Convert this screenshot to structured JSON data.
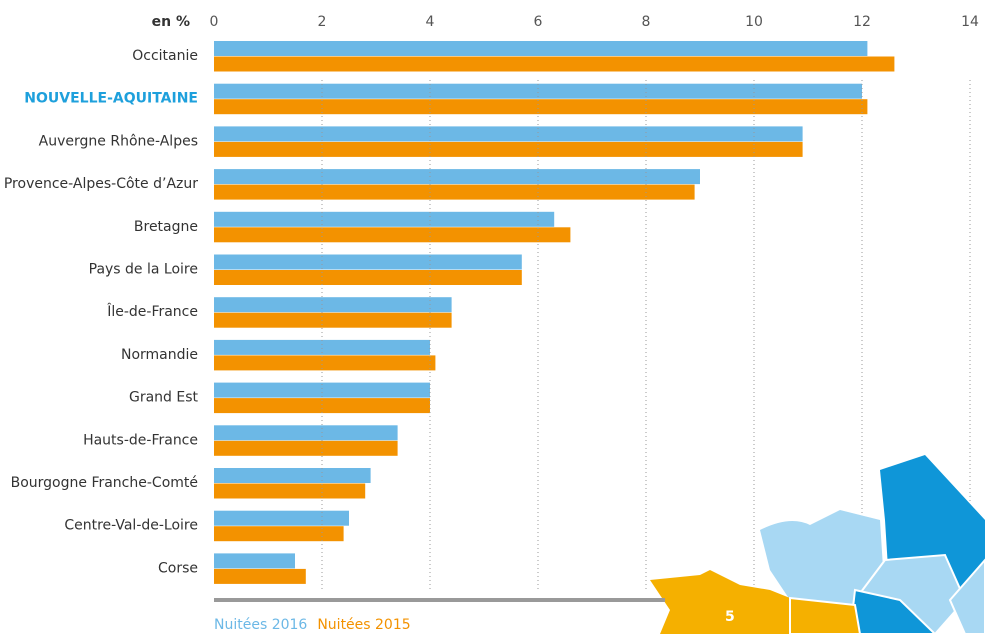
{
  "chart_data": {
    "type": "bar",
    "orientation": "horizontal",
    "axis_label": "en %",
    "categories": [
      "Occitanie",
      "NOUVELLE-AQUITAINE",
      "Auvergne Rhône-Alpes",
      "Provence-Alpes-Côte d’Azur",
      "Bretagne",
      "Pays de la Loire",
      "Île-de-France",
      "Normandie",
      "Grand Est",
      "Hauts-de-France",
      "Bourgogne Franche-Comté",
      "Centre-Val-de-Loire",
      "Corse"
    ],
    "series": [
      {
        "name": "Nuitées 2016",
        "color": "#6cb8e6",
        "values": [
          12.1,
          12.0,
          10.9,
          9.0,
          6.3,
          5.7,
          4.4,
          4.0,
          4.0,
          3.4,
          2.9,
          2.5,
          1.5
        ]
      },
      {
        "name": "Nuitées 2015",
        "color": "#f39200",
        "values": [
          12.6,
          12.1,
          10.9,
          8.9,
          6.6,
          5.7,
          4.4,
          4.1,
          4.0,
          3.4,
          2.8,
          2.4,
          1.7
        ]
      }
    ],
    "xlim": [
      0,
      14
    ],
    "xticks": [
      0,
      2,
      4,
      6,
      8,
      10,
      12,
      14
    ],
    "grid": true,
    "highlight_index": 1,
    "highlight_color": "#1ea0dc",
    "annotation": "5"
  }
}
